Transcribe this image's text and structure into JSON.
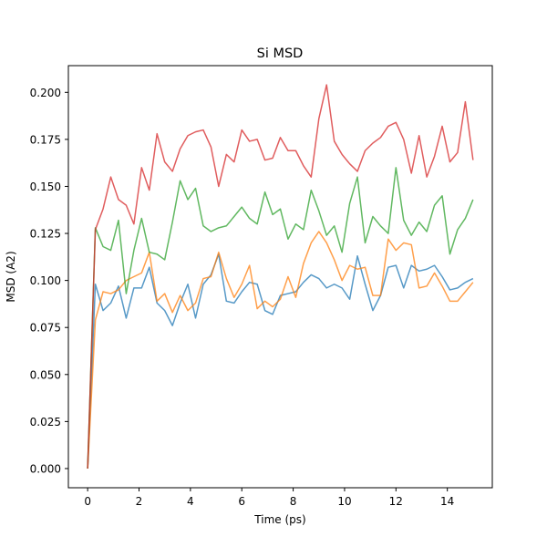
{
  "chart_data": {
    "type": "line",
    "title": "Si MSD",
    "xlabel": "Time (ps)",
    "ylabel": "MSD (A2)",
    "xlim": [
      -0.75,
      15.75
    ],
    "ylim": [
      -0.0102,
      0.2142
    ],
    "xticks": [
      0,
      2,
      4,
      6,
      8,
      10,
      12,
      14
    ],
    "xtick_labels": [
      "0",
      "2",
      "4",
      "6",
      "8",
      "10",
      "12",
      "14"
    ],
    "yticks": [
      0.0,
      0.025,
      0.05,
      0.075,
      0.1,
      0.125,
      0.15,
      0.175,
      0.2
    ],
    "ytick_labels": [
      "0.000",
      "0.025",
      "0.050",
      "0.075",
      "0.100",
      "0.125",
      "0.150",
      "0.175",
      "0.200"
    ],
    "grid": false,
    "legend": null,
    "x": [
      0,
      0.3,
      0.6,
      0.9,
      1.2,
      1.5,
      1.8,
      2.1,
      2.4,
      2.7,
      3.0,
      3.3,
      3.6,
      3.9,
      4.2,
      4.5,
      4.8,
      5.1,
      5.4,
      5.7,
      6.0,
      6.3,
      6.6,
      6.9,
      7.2,
      7.5,
      7.8,
      8.1,
      8.4,
      8.7,
      9.0,
      9.3,
      9.6,
      9.9,
      10.2,
      10.5,
      10.8,
      11.1,
      11.4,
      11.7,
      12.0,
      12.3,
      12.6,
      12.9,
      13.2,
      13.5,
      13.8,
      14.1,
      14.4,
      14.7,
      15.0
    ],
    "series": [
      {
        "color": "#1f77b4",
        "values": [
          0.0,
          0.098,
          0.084,
          0.088,
          0.097,
          0.08,
          0.096,
          0.096,
          0.107,
          0.088,
          0.084,
          0.076,
          0.088,
          0.098,
          0.08,
          0.098,
          0.103,
          0.114,
          0.089,
          0.088,
          0.094,
          0.099,
          0.098,
          0.084,
          0.082,
          0.092,
          0.093,
          0.094,
          0.099,
          0.103,
          0.101,
          0.096,
          0.098,
          0.096,
          0.09,
          0.113,
          0.098,
          0.084,
          0.092,
          0.107,
          0.108,
          0.096,
          0.108,
          0.105,
          0.106,
          0.108,
          0.102,
          0.095,
          0.096,
          0.099,
          0.101
        ]
      },
      {
        "color": "#ff7f0e",
        "values": [
          0.0,
          0.079,
          0.094,
          0.093,
          0.095,
          0.1,
          0.102,
          0.104,
          0.115,
          0.089,
          0.093,
          0.083,
          0.092,
          0.084,
          0.088,
          0.101,
          0.102,
          0.115,
          0.101,
          0.091,
          0.098,
          0.108,
          0.085,
          0.089,
          0.086,
          0.09,
          0.102,
          0.091,
          0.109,
          0.12,
          0.126,
          0.12,
          0.111,
          0.1,
          0.108,
          0.106,
          0.107,
          0.092,
          0.092,
          0.122,
          0.116,
          0.12,
          0.119,
          0.096,
          0.097,
          0.104,
          0.097,
          0.089,
          0.089,
          0.094,
          0.099
        ]
      },
      {
        "color": "#2ca02c",
        "values": [
          0.0,
          0.128,
          0.118,
          0.116,
          0.132,
          0.093,
          0.116,
          0.133,
          0.115,
          0.114,
          0.111,
          0.131,
          0.153,
          0.143,
          0.149,
          0.129,
          0.126,
          0.128,
          0.129,
          0.134,
          0.139,
          0.133,
          0.13,
          0.147,
          0.135,
          0.138,
          0.122,
          0.13,
          0.127,
          0.148,
          0.137,
          0.124,
          0.129,
          0.115,
          0.141,
          0.155,
          0.12,
          0.134,
          0.129,
          0.125,
          0.16,
          0.132,
          0.124,
          0.131,
          0.126,
          0.14,
          0.145,
          0.114,
          0.127,
          0.133,
          0.143
        ]
      },
      {
        "color": "#d62728",
        "values": [
          0.0,
          0.127,
          0.138,
          0.155,
          0.143,
          0.14,
          0.13,
          0.16,
          0.148,
          0.178,
          0.163,
          0.158,
          0.17,
          0.177,
          0.179,
          0.18,
          0.171,
          0.15,
          0.167,
          0.163,
          0.18,
          0.174,
          0.175,
          0.164,
          0.165,
          0.176,
          0.169,
          0.169,
          0.161,
          0.155,
          0.186,
          0.204,
          0.174,
          0.167,
          0.162,
          0.158,
          0.169,
          0.173,
          0.176,
          0.182,
          0.184,
          0.175,
          0.157,
          0.177,
          0.155,
          0.166,
          0.182,
          0.163,
          0.168,
          0.195,
          0.164
        ]
      }
    ]
  }
}
